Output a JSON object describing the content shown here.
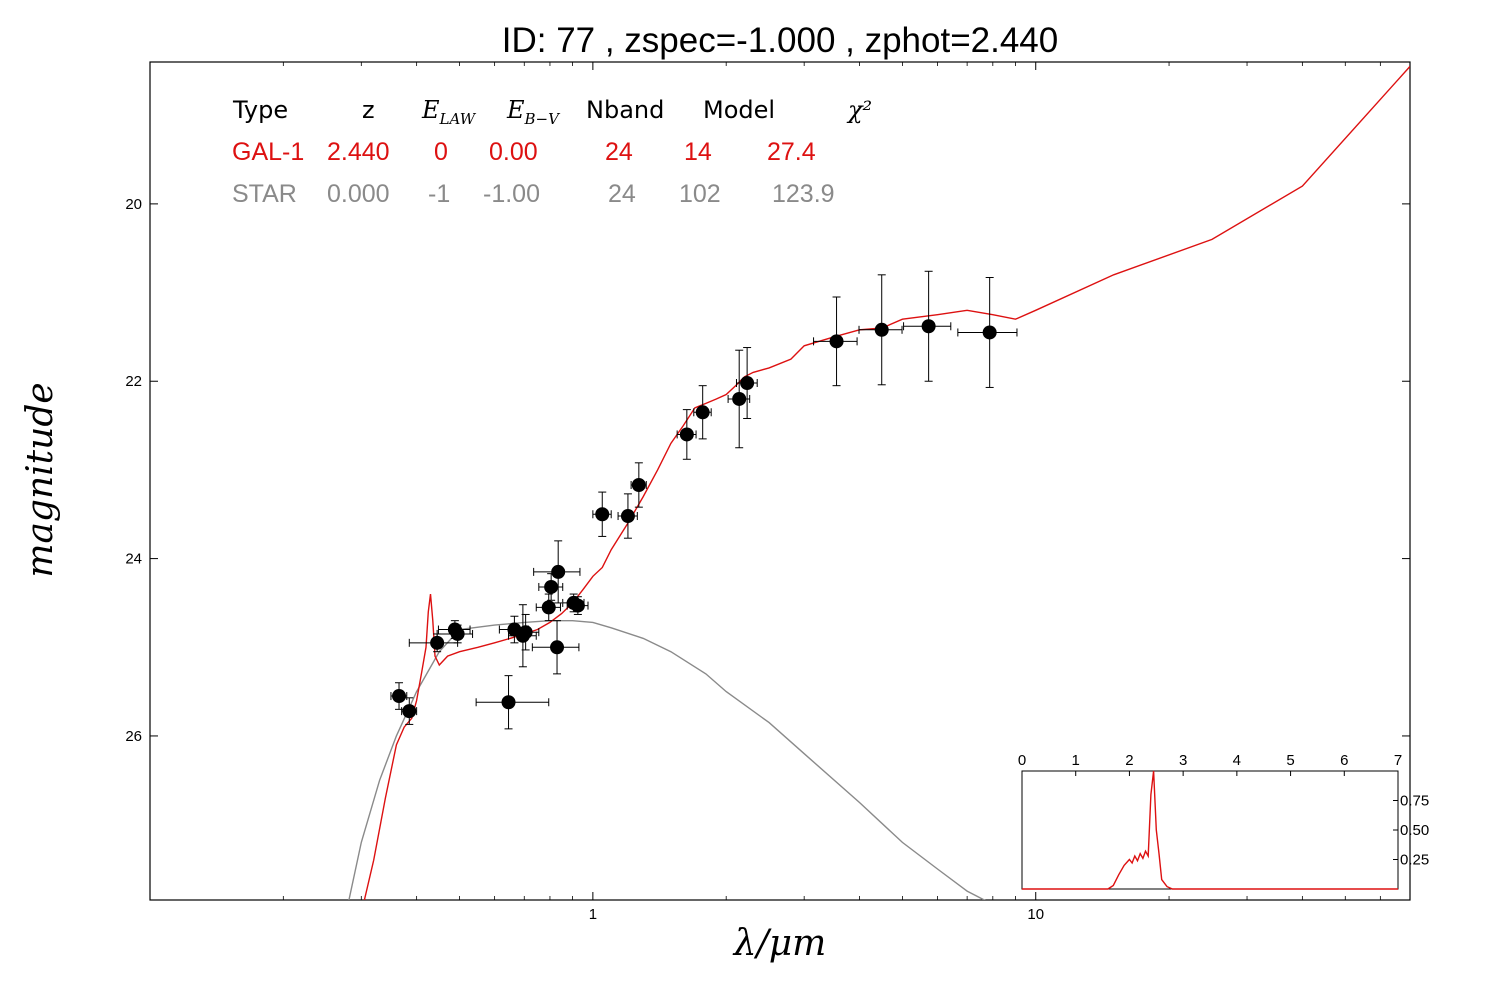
{
  "title": "ID:  77    , zspec=-1.000 , zphot=2.440",
  "colors": {
    "galaxy": "#dd1111",
    "star": "#8a8a8a",
    "points": "#000000",
    "axes": "#000000"
  },
  "chart_data": [
    {
      "type": "scatter",
      "xlabel": "λ/μm",
      "ylabel": "magnitude",
      "xscale": "log",
      "xlim": [
        0.1,
        70
      ],
      "ylim": [
        27.85,
        18.4
      ],
      "y_inverted": true,
      "xticks": [
        {
          "value": 1,
          "label": "1"
        },
        {
          "value": 10,
          "label": "10"
        }
      ],
      "yticks": [
        {
          "value": 20,
          "label": "20"
        },
        {
          "value": 22,
          "label": "22"
        },
        {
          "value": 24,
          "label": "24"
        },
        {
          "value": 26,
          "label": "26"
        }
      ],
      "table": {
        "headers": [
          "Type",
          "z",
          "E_LAW",
          "E_B-V",
          "Nband",
          "Model",
          "χ²"
        ],
        "rows": [
          {
            "name": "galaxy",
            "cells": [
              "GAL-1",
              "2.440",
              "0",
              "0.00",
              "24",
              "14",
              "27.4"
            ]
          },
          {
            "name": "star",
            "cells": [
              "STAR",
              "0.000",
              "-1",
              "-1.00",
              "24",
              "102",
              "123.9"
            ]
          }
        ]
      },
      "points": [
        {
          "x": 0.365,
          "y": 25.55,
          "xerr": [
            0.015,
            0.015
          ],
          "yerr": 0.15
        },
        {
          "x": 0.385,
          "y": 25.72,
          "xerr": [
            0.015,
            0.015
          ],
          "yerr": 0.15
        },
        {
          "x": 0.445,
          "y": 24.95,
          "xerr": [
            0.06,
            0.05
          ],
          "yerr": 0.1
        },
        {
          "x": 0.488,
          "y": 24.8,
          "xerr": [
            0.04,
            0.04
          ],
          "yerr": 0.1
        },
        {
          "x": 0.495,
          "y": 24.85,
          "xerr": [
            0.05,
            0.04
          ],
          "yerr": 0.1
        },
        {
          "x": 0.645,
          "y": 25.62,
          "xerr": [
            0.1,
            0.15
          ],
          "yerr": 0.3
        },
        {
          "x": 0.665,
          "y": 24.8,
          "xerr": [
            0.05,
            0.05
          ],
          "yerr": 0.15
        },
        {
          "x": 0.695,
          "y": 24.87,
          "xerr": [
            0.05,
            0.05
          ],
          "yerr": 0.35
        },
        {
          "x": 0.705,
          "y": 24.83,
          "xerr": [
            0.05,
            0.05
          ],
          "yerr": 0.2
        },
        {
          "x": 0.795,
          "y": 24.55,
          "xerr": [
            0.05,
            0.05
          ],
          "yerr": 0.15
        },
        {
          "x": 0.805,
          "y": 24.32,
          "xerr": [
            0.05,
            0.05
          ],
          "yerr": 0.15
        },
        {
          "x": 0.835,
          "y": 24.15,
          "xerr": [
            0.1,
            0.1
          ],
          "yerr": 0.35
        },
        {
          "x": 0.83,
          "y": 25.0,
          "xerr": [
            0.1,
            0.1
          ],
          "yerr": 0.3
        },
        {
          "x": 0.905,
          "y": 24.5,
          "xerr": [
            0.05,
            0.05
          ],
          "yerr": 0.1
        },
        {
          "x": 0.925,
          "y": 24.53,
          "xerr": [
            0.05,
            0.05
          ],
          "yerr": 0.1
        },
        {
          "x": 1.05,
          "y": 23.5,
          "xerr": [
            0.05,
            0.05
          ],
          "yerr": 0.25
        },
        {
          "x": 1.2,
          "y": 23.52,
          "xerr": [
            0.06,
            0.06
          ],
          "yerr": 0.25
        },
        {
          "x": 1.27,
          "y": 23.17,
          "xerr": [
            0.05,
            0.05
          ],
          "yerr": 0.25
        },
        {
          "x": 1.63,
          "y": 22.6,
          "xerr": [
            0.08,
            0.08
          ],
          "yerr": 0.28
        },
        {
          "x": 1.77,
          "y": 22.35,
          "xerr": [
            0.08,
            0.08
          ],
          "yerr": 0.3
        },
        {
          "x": 2.14,
          "y": 22.2,
          "xerr": [
            0.12,
            0.12
          ],
          "yerr": 0.55
        },
        {
          "x": 2.23,
          "y": 22.02,
          "xerr": [
            0.12,
            0.12
          ],
          "yerr": 0.4
        },
        {
          "x": 3.55,
          "y": 21.55,
          "xerr": [
            0.4,
            0.4
          ],
          "yerr": 0.5
        },
        {
          "x": 4.49,
          "y": 21.42,
          "xerr": [
            0.5,
            0.5
          ],
          "yerr": 0.62
        },
        {
          "x": 5.73,
          "y": 21.38,
          "xerr": [
            0.7,
            0.7
          ],
          "yerr": 0.62
        },
        {
          "x": 7.87,
          "y": 21.45,
          "xerr": [
            1.2,
            1.2
          ],
          "yerr": 0.62
        }
      ],
      "series": [
        {
          "name": "GAL-1",
          "color": "#dd1111",
          "x": [
            0.3,
            0.32,
            0.34,
            0.36,
            0.375,
            0.39,
            0.4,
            0.41,
            0.42,
            0.425,
            0.43,
            0.435,
            0.44,
            0.45,
            0.47,
            0.5,
            0.55,
            0.6,
            0.65,
            0.7,
            0.75,
            0.8,
            0.85,
            0.9,
            0.95,
            1.0,
            1.05,
            1.1,
            1.2,
            1.3,
            1.4,
            1.5,
            1.6,
            1.7,
            1.8,
            1.9,
            2.0,
            2.1,
            2.2,
            2.3,
            2.5,
            2.8,
            3.0,
            3.5,
            4.0,
            4.5,
            5.0,
            6.0,
            7.0,
            8.0,
            9.0,
            10.0,
            15.0,
            25.0,
            40.0,
            70.0
          ],
          "y": [
            28.0,
            27.4,
            26.7,
            26.1,
            25.9,
            25.8,
            25.6,
            25.3,
            25.0,
            24.6,
            24.4,
            24.7,
            25.1,
            25.2,
            25.1,
            25.05,
            25.0,
            24.95,
            24.9,
            24.85,
            24.8,
            24.72,
            24.62,
            24.5,
            24.35,
            24.2,
            24.1,
            23.9,
            23.6,
            23.3,
            23.0,
            22.7,
            22.5,
            22.3,
            22.25,
            22.2,
            22.15,
            22.05,
            21.95,
            21.9,
            21.85,
            21.75,
            21.6,
            21.5,
            21.42,
            21.4,
            21.3,
            21.25,
            21.2,
            21.25,
            21.3,
            21.2,
            20.8,
            20.4,
            19.8,
            18.45
          ]
        },
        {
          "name": "STAR",
          "color": "#8a8a8a",
          "x": [
            0.28,
            0.3,
            0.33,
            0.36,
            0.4,
            0.45,
            0.5,
            0.6,
            0.7,
            0.8,
            0.9,
            1.0,
            1.1,
            1.3,
            1.5,
            1.8,
            2.0,
            2.5,
            3.0,
            4.0,
            5.0,
            6.0,
            7.0,
            8.0
          ],
          "y": [
            27.9,
            27.2,
            26.5,
            26.0,
            25.5,
            25.05,
            24.8,
            24.75,
            24.72,
            24.7,
            24.7,
            24.72,
            24.78,
            24.9,
            25.05,
            25.3,
            25.5,
            25.85,
            26.2,
            26.75,
            27.2,
            27.5,
            27.75,
            27.9
          ]
        }
      ]
    },
    {
      "type": "line",
      "title": "",
      "xlim": [
        0,
        7
      ],
      "ylim": [
        0,
        1.0
      ],
      "xticks": [
        "0",
        "1",
        "2",
        "3",
        "4",
        "5",
        "6",
        "7"
      ],
      "yticks": [
        {
          "value": 0.25,
          "label": "0.25"
        },
        {
          "value": 0.5,
          "label": "0.50"
        },
        {
          "value": 0.75,
          "label": "0.75"
        }
      ],
      "series": [
        {
          "color": "#dd1111",
          "x": [
            0,
            1.6,
            1.7,
            1.8,
            1.9,
            2.0,
            2.05,
            2.1,
            2.15,
            2.2,
            2.25,
            2.3,
            2.35,
            2.4,
            2.45,
            2.5,
            2.55,
            2.6,
            2.7,
            2.8,
            7.0
          ],
          "y": [
            0,
            0.0,
            0.03,
            0.12,
            0.2,
            0.25,
            0.22,
            0.28,
            0.24,
            0.3,
            0.26,
            0.32,
            0.28,
            0.8,
            1.0,
            0.5,
            0.3,
            0.08,
            0.02,
            0.0,
            0.0
          ]
        }
      ]
    }
  ]
}
